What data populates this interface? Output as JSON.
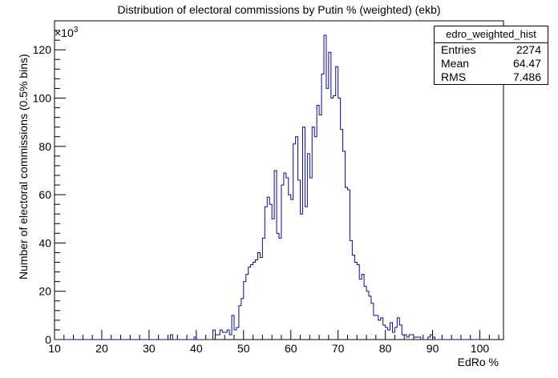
{
  "chart_data": {
    "type": "histogram",
    "title": "Distribution of electoral commissions by Putin % (weighted) (ekb)",
    "xlabel": "EdRo %",
    "ylabel": "Number of electoral commissions (0.5% bins)",
    "y_multiplier": "×10",
    "y_multiplier_exp": "3",
    "xlim": [
      10,
      105
    ],
    "ylim": [
      0,
      132
    ],
    "bin_width": 0.5,
    "x_ticks": [
      10,
      20,
      30,
      40,
      50,
      60,
      70,
      80,
      90,
      100
    ],
    "y_ticks": [
      0,
      20,
      40,
      60,
      80,
      100,
      120
    ],
    "bins": [
      [
        34.5,
        2
      ],
      [
        39.5,
        1
      ],
      [
        43.5,
        4
      ],
      [
        44.0,
        2
      ],
      [
        44.5,
        2
      ],
      [
        45.0,
        4
      ],
      [
        45.5,
        3
      ],
      [
        46.0,
        3
      ],
      [
        46.5,
        4
      ],
      [
        47.0,
        2
      ],
      [
        47.5,
        10
      ],
      [
        48.0,
        4
      ],
      [
        48.5,
        5
      ],
      [
        49.0,
        14
      ],
      [
        49.5,
        17
      ],
      [
        50.0,
        24
      ],
      [
        50.5,
        27
      ],
      [
        51.0,
        30
      ],
      [
        51.5,
        31
      ],
      [
        52.0,
        32
      ],
      [
        52.5,
        33
      ],
      [
        53.0,
        36
      ],
      [
        53.5,
        34
      ],
      [
        54.0,
        42
      ],
      [
        54.5,
        55
      ],
      [
        55.0,
        59
      ],
      [
        55.5,
        56
      ],
      [
        56.0,
        50
      ],
      [
        56.5,
        70
      ],
      [
        57.0,
        44
      ],
      [
        57.5,
        42
      ],
      [
        58.0,
        64
      ],
      [
        58.5,
        69
      ],
      [
        59.0,
        67
      ],
      [
        59.5,
        60
      ],
      [
        60.0,
        58
      ],
      [
        60.5,
        81
      ],
      [
        61.0,
        84
      ],
      [
        61.5,
        66
      ],
      [
        62.0,
        52
      ],
      [
        62.5,
        88
      ],
      [
        63.0,
        55
      ],
      [
        63.5,
        77
      ],
      [
        64.0,
        67
      ],
      [
        64.5,
        88
      ],
      [
        65.0,
        84
      ],
      [
        65.5,
        97
      ],
      [
        66.0,
        93
      ],
      [
        66.5,
        110
      ],
      [
        67.0,
        126
      ],
      [
        67.5,
        104
      ],
      [
        68.0,
        119
      ],
      [
        68.5,
        100
      ],
      [
        69.0,
        101
      ],
      [
        69.5,
        113
      ],
      [
        70.0,
        100
      ],
      [
        70.5,
        87
      ],
      [
        71.0,
        78
      ],
      [
        71.5,
        63
      ],
      [
        72.0,
        62
      ],
      [
        72.5,
        41
      ],
      [
        73.0,
        35
      ],
      [
        73.5,
        32
      ],
      [
        74.0,
        31
      ],
      [
        74.5,
        25
      ],
      [
        75.0,
        27
      ],
      [
        75.5,
        22
      ],
      [
        76.0,
        20
      ],
      [
        76.5,
        18
      ],
      [
        77.0,
        15
      ],
      [
        77.5,
        10
      ],
      [
        78.0,
        10
      ],
      [
        78.5,
        8
      ],
      [
        79.0,
        9
      ],
      [
        79.5,
        6
      ],
      [
        80.0,
        5
      ],
      [
        80.5,
        4
      ],
      [
        81.0,
        7
      ],
      [
        81.5,
        3
      ],
      [
        82.0,
        5
      ],
      [
        82.5,
        9
      ],
      [
        83.0,
        6
      ],
      [
        83.5,
        2
      ],
      [
        84.0,
        2
      ],
      [
        84.5,
        1
      ],
      [
        85.0,
        2
      ],
      [
        85.5,
        2
      ],
      [
        86.0,
        1
      ],
      [
        86.5,
        1
      ],
      [
        87.0,
        1
      ],
      [
        89.0,
        1
      ],
      [
        89.5,
        2
      ],
      [
        90.0,
        1
      ]
    ],
    "stats": {
      "name": "edro_weighted_hist",
      "rows": [
        {
          "label": "Entries",
          "value": "2274"
        },
        {
          "label": "Mean",
          "value": "64.47"
        },
        {
          "label": "RMS",
          "value": "7.486"
        }
      ]
    },
    "colors": {
      "line": "#0b0b8a",
      "axis": "#000000"
    }
  }
}
